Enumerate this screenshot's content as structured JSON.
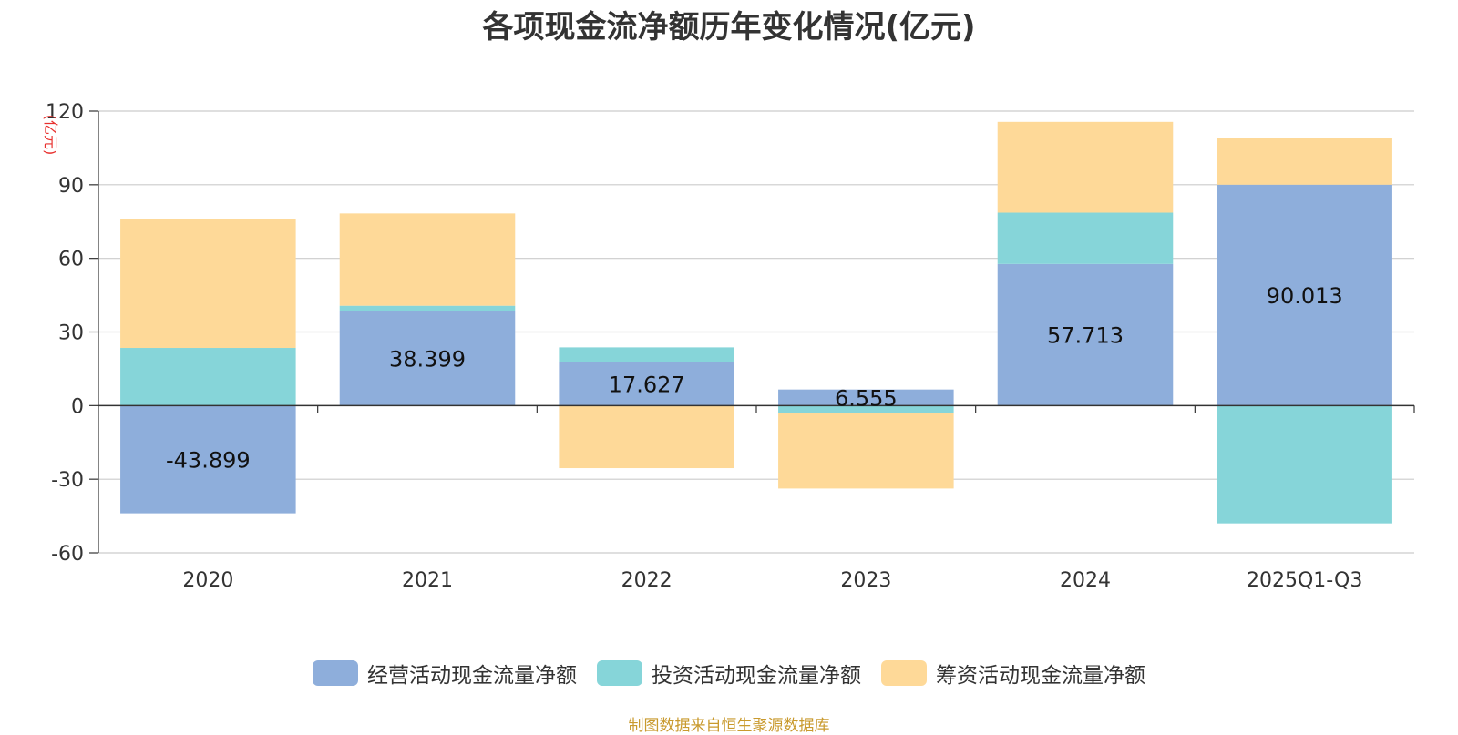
{
  "chart_data": {
    "type": "bar",
    "stacked": true,
    "title": "各项现金流净额历年变化情况(亿元)",
    "ylabel": "(亿元)",
    "ylim": [
      -60,
      120
    ],
    "yticks": [
      120,
      90,
      60,
      30,
      0,
      -30,
      -60
    ],
    "categories": [
      "2020",
      "2021",
      "2022",
      "2023",
      "2024",
      "2025Q1-Q3"
    ],
    "series": [
      {
        "name": "经营活动现金流量净额",
        "color": "#8eaedb",
        "values": [
          -43.899,
          38.399,
          17.627,
          6.555,
          57.713,
          90.013
        ],
        "labels": [
          "-43.899",
          "38.399",
          "17.627",
          "6.555",
          "57.713",
          "90.013"
        ]
      },
      {
        "name": "投资活动现金流量净额",
        "color": "#86d5d9",
        "values": [
          23.5,
          2.3,
          6.1,
          -2.9,
          20.9,
          -48.0
        ]
      },
      {
        "name": "筹资活动现金流量净额",
        "color": "#fed998",
        "values": [
          52.4,
          37.6,
          -25.5,
          -30.9,
          37.0,
          19.0
        ]
      }
    ],
    "legend_position": "bottom",
    "grid": true
  },
  "source": "制图数据来自恒生聚源数据库"
}
